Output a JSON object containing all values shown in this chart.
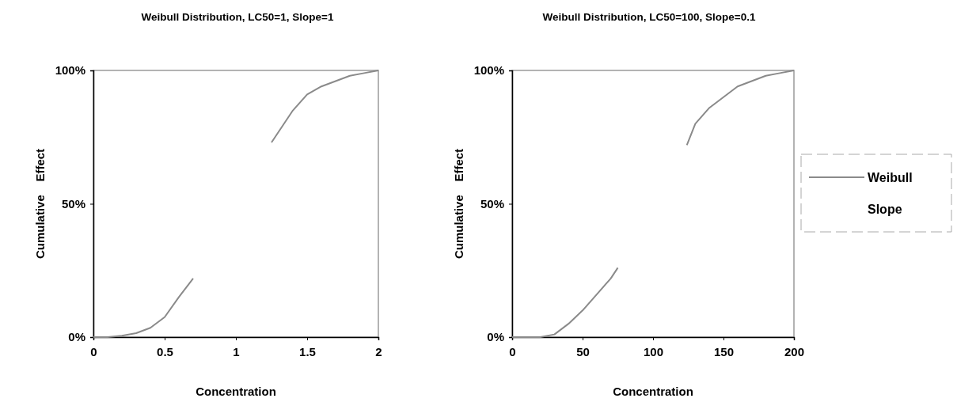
{
  "chart_data": [
    {
      "type": "line",
      "title": "Weibull Distribution, LC50=1,  Slope=1",
      "xlabel": "Concentration",
      "ylabel": "Cumulative    Effect",
      "x": [
        0,
        0.1,
        0.2,
        0.3,
        0.4,
        0.5,
        0.6,
        0.7,
        1,
        1.25,
        1.3,
        1.4,
        1.5,
        1.6,
        1.7,
        1.8,
        1.9,
        2
      ],
      "series": [
        {
          "color": "#8a8a8a",
          "values": [
            0,
            0,
            0.5,
            1.5,
            3.5,
            7.5,
            15,
            22,
            null,
            73,
            77,
            85,
            91,
            94,
            96,
            98,
            99,
            100
          ]
        }
      ],
      "xlim": [
        0,
        2
      ],
      "xticks": [
        0,
        0.5,
        1,
        1.5,
        2
      ],
      "ylim": [
        0,
        100
      ],
      "yticks": [
        {
          "value": 0,
          "label": "0%"
        },
        {
          "value": 50,
          "label": "50%"
        },
        {
          "value": 100,
          "label": "100%"
        }
      ],
      "grid": false,
      "legend": false
    },
    {
      "type": "line",
      "title": "Weibull Distribution, LC50=100,  Slope=0.1",
      "xlabel": "Concentration",
      "ylabel": "Cumulative    Effect",
      "x": [
        0,
        20,
        30,
        40,
        50,
        60,
        70,
        75,
        100,
        124,
        130,
        140,
        150,
        160,
        170,
        180,
        190,
        200
      ],
      "series": [
        {
          "name": "Weibull",
          "color": "#8a8a8a",
          "values": [
            0,
            0,
            1,
            5,
            10,
            16,
            22,
            26,
            null,
            72,
            80,
            86,
            90,
            94,
            96,
            98,
            99,
            100
          ]
        },
        {
          "name": "Slope",
          "values": [
            null,
            null,
            null,
            null,
            null,
            null,
            null,
            null,
            null,
            null,
            null,
            null,
            null,
            null,
            null,
            null,
            null,
            null
          ]
        }
      ],
      "xlim": [
        0,
        200
      ],
      "xticks": [
        0,
        50,
        100,
        150,
        200
      ],
      "ylim": [
        0,
        100
      ],
      "yticks": [
        {
          "value": 0,
          "label": "0%"
        },
        {
          "value": 50,
          "label": "50%"
        },
        {
          "value": 100,
          "label": "100%"
        }
      ],
      "grid": false,
      "legend": "right"
    }
  ]
}
